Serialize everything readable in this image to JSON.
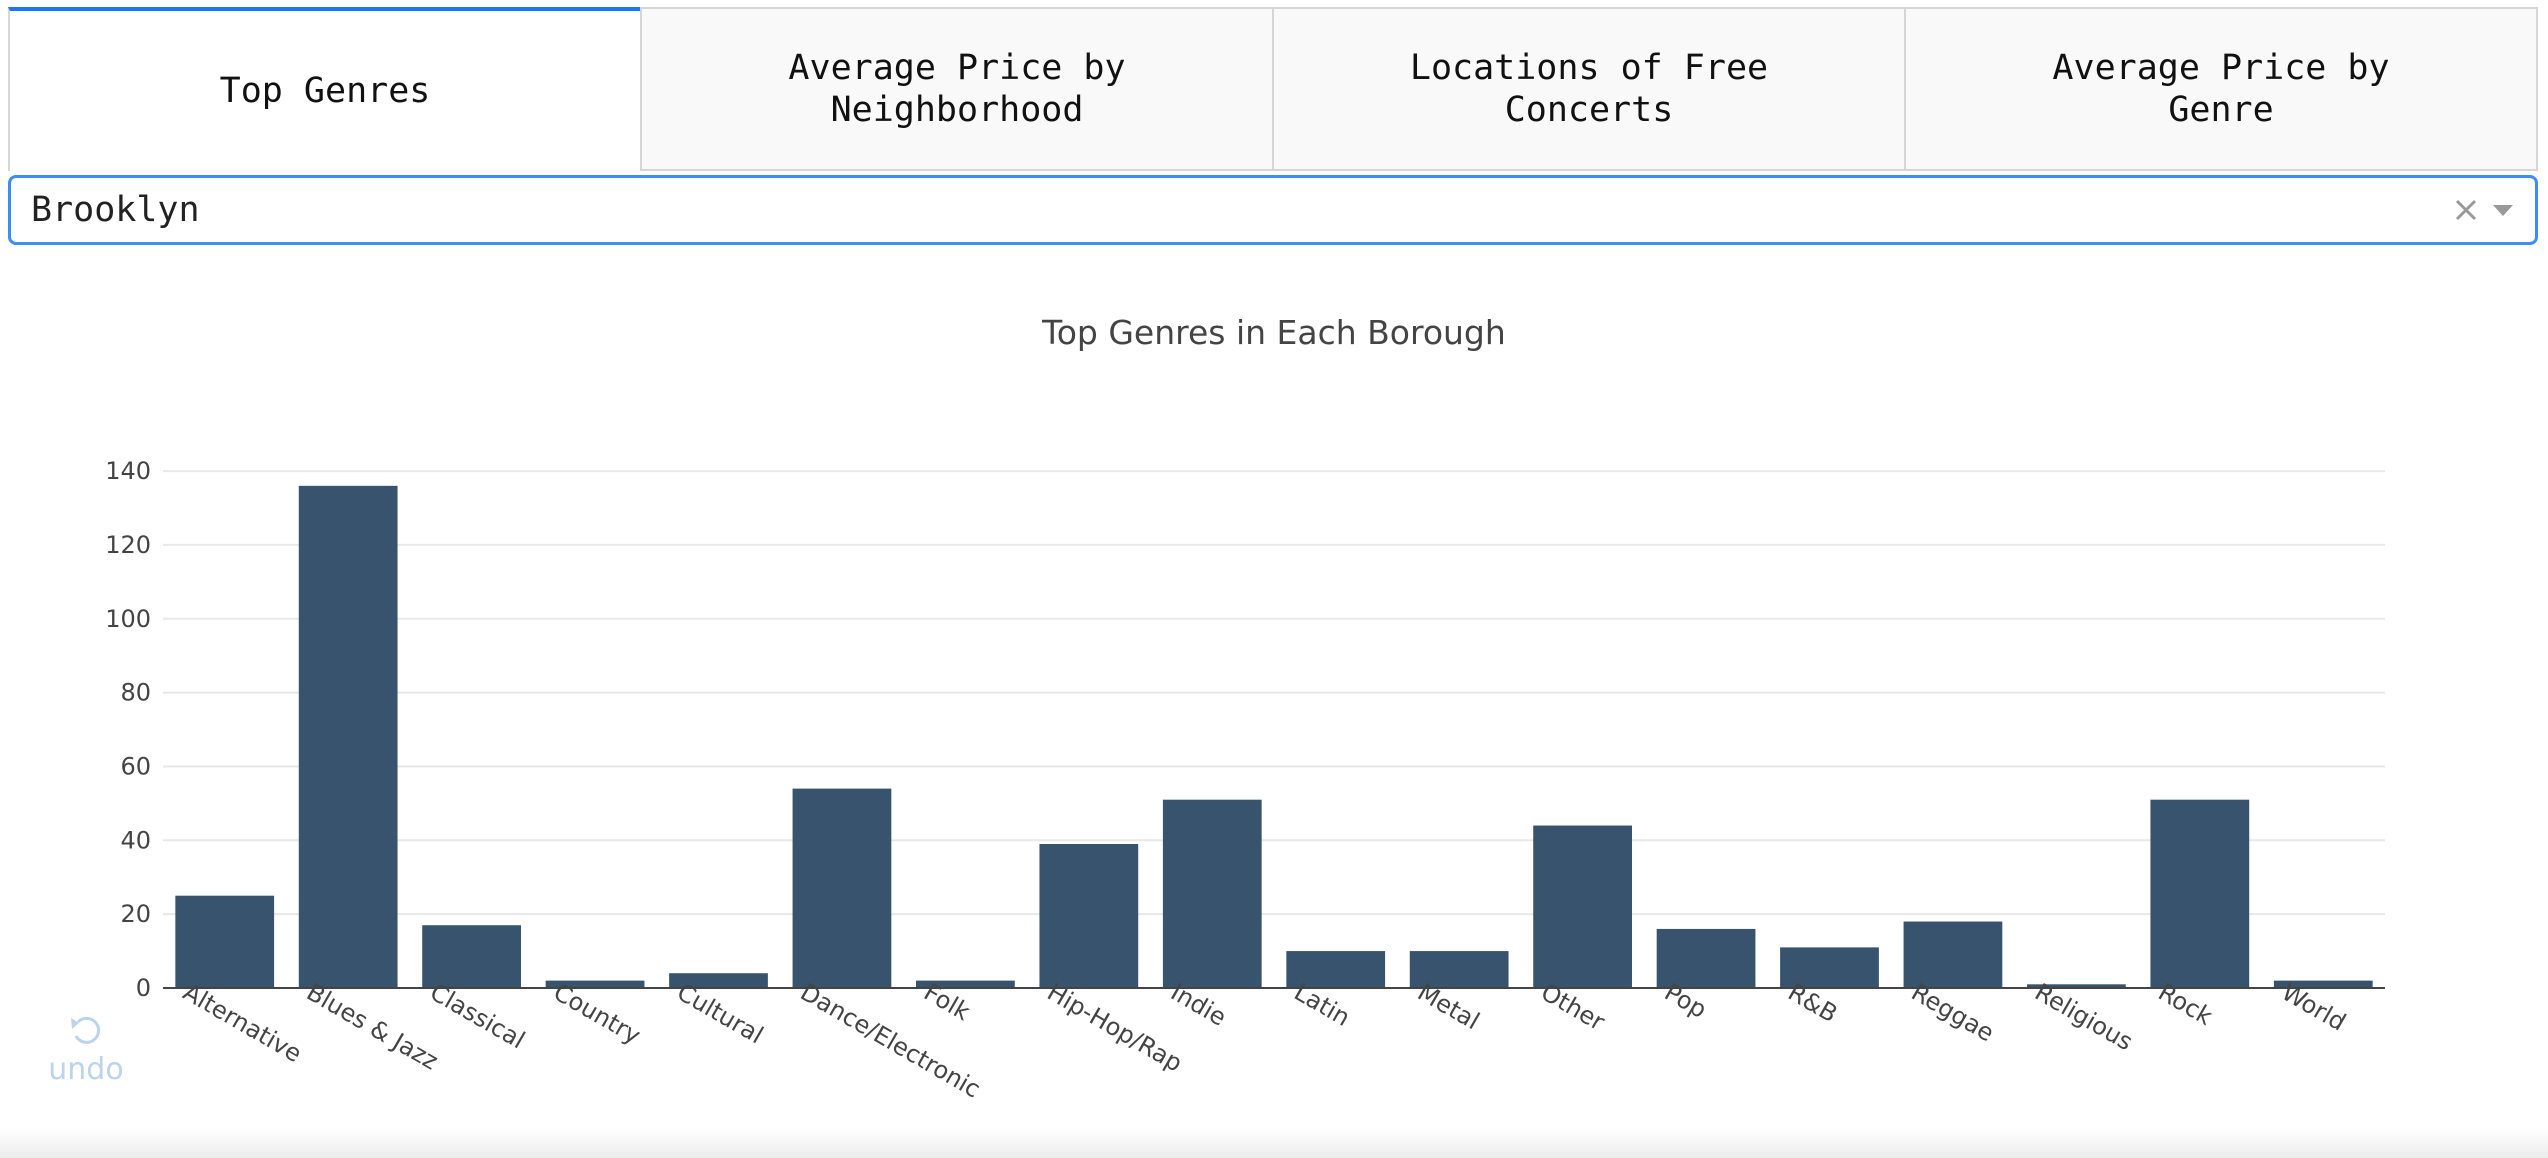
{
  "tabs": [
    {
      "label": "Top Genres",
      "active": true
    },
    {
      "label": "Average Price by Neighborhood",
      "active": false
    },
    {
      "label": "Locations of Free Concerts",
      "active": false
    },
    {
      "label": "Average Price by Genre",
      "active": false
    }
  ],
  "dropdown": {
    "value": "Brooklyn",
    "clear_icon": "close-icon",
    "toggle_icon": "chevron-down-icon"
  },
  "undo": {
    "label": "undo",
    "icon": "undo-icon"
  },
  "colors": {
    "bar": "#37536d",
    "accent": "#1975fa"
  },
  "chart_data": {
    "type": "bar",
    "title": "Top Genres in Each Borough",
    "xlabel": "",
    "ylabel": "",
    "categories": [
      "Alternative",
      "Blues & Jazz",
      "Classical",
      "Country",
      "Cultural",
      "Dance/Electronic",
      "Folk",
      "Hip-Hop/Rap",
      "Indie",
      "Latin",
      "Metal",
      "Other",
      "Pop",
      "R&B",
      "Reggae",
      "Religious",
      "Rock",
      "World"
    ],
    "values": [
      25,
      136,
      17,
      2,
      4,
      54,
      2,
      39,
      51,
      10,
      10,
      44,
      16,
      11,
      18,
      1,
      51,
      2
    ],
    "yticks": [
      0,
      20,
      40,
      60,
      80,
      100,
      120,
      140
    ],
    "ylim": [
      0,
      143
    ],
    "grid": true,
    "legend": "none"
  }
}
